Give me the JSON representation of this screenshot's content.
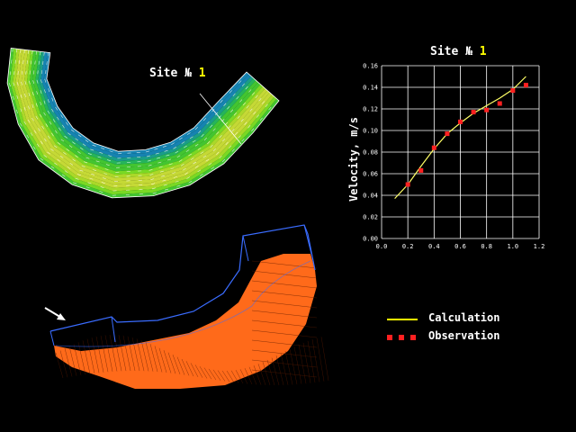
{
  "site_label": {
    "prefix": "Site №",
    "number": "1"
  },
  "chart_data": {
    "type": "scatter",
    "title": "Site № 1",
    "xlabel": "",
    "ylabel": "Velocity, m/s",
    "xlim": [
      0.0,
      1.2
    ],
    "ylim": [
      0.0,
      0.16
    ],
    "x_ticks": [
      "0.0",
      "0.2",
      "0.4",
      "0.6",
      "0.8",
      "1.0",
      "1.2"
    ],
    "y_ticks": [
      "0.00",
      "0.02",
      "0.04",
      "0.06",
      "0.08",
      "0.10",
      "0.12",
      "0.14",
      "0.16"
    ],
    "grid": true,
    "series": [
      {
        "name": "Calculation",
        "kind": "line",
        "x": [
          0.1,
          0.2,
          0.3,
          0.4,
          0.5,
          0.6,
          0.7,
          0.8,
          0.9,
          1.0,
          1.1
        ],
        "y": [
          0.037,
          0.05,
          0.067,
          0.083,
          0.097,
          0.107,
          0.116,
          0.123,
          0.13,
          0.138,
          0.15
        ]
      },
      {
        "name": "Observation",
        "kind": "points",
        "x": [
          0.2,
          0.3,
          0.4,
          0.5,
          0.6,
          0.7,
          0.8,
          0.9,
          1.0,
          1.1
        ],
        "y": [
          0.05,
          0.063,
          0.084,
          0.097,
          0.108,
          0.117,
          0.119,
          0.125,
          0.137,
          0.142
        ]
      }
    ],
    "legend_position": "bottom-right"
  },
  "legend": [
    {
      "label": "Calculation",
      "color": "#ffff00",
      "marker": "line"
    },
    {
      "label": "Observation",
      "color": "#ff2020",
      "marker": "squares"
    }
  ],
  "colors": {
    "background": "#000000",
    "text": "#ffffff",
    "accent": "#ffff00",
    "terrain": "#ff6a1a",
    "outline": "#3366ff"
  },
  "icons": {
    "flow_arrow": "arrow-icon"
  }
}
